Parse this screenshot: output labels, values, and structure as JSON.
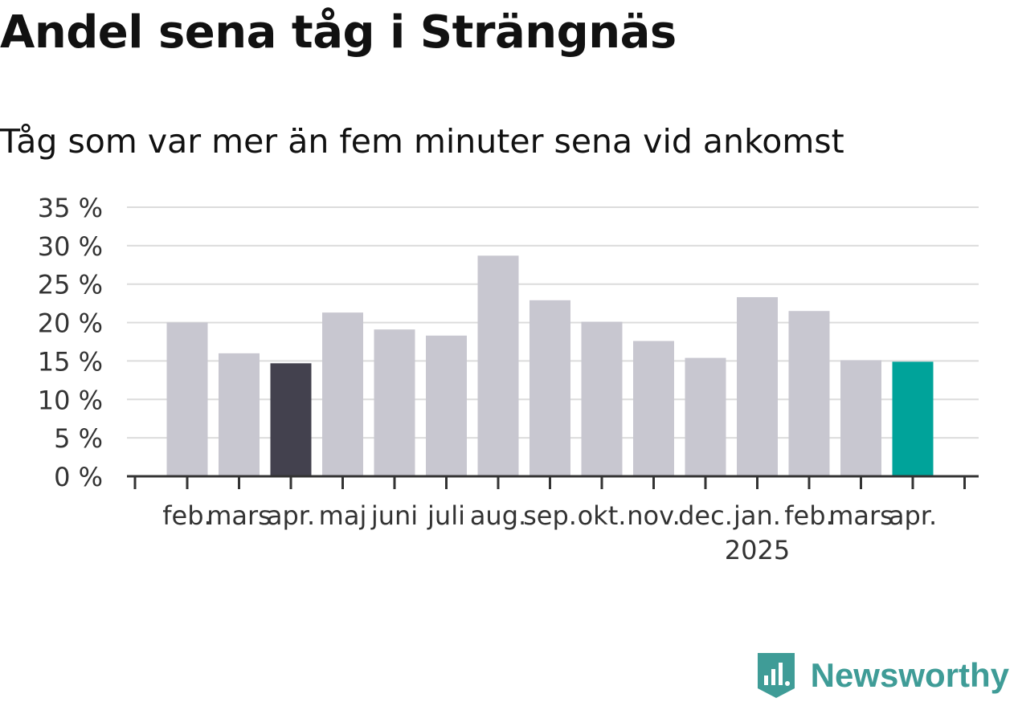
{
  "title": "Andel sena tåg i Strängnäs",
  "subtitle": "Tåg som var mer än fem minuter sena vid ankomst",
  "brand": {
    "name": "Newsworthy",
    "icon": "newsworthy-logo-icon",
    "color": "#3f9c97"
  },
  "chart_data": {
    "type": "bar",
    "categories": [
      "feb.",
      "mars",
      "apr.",
      "maj",
      "juni",
      "juli",
      "aug.",
      "sep.",
      "okt.",
      "nov.",
      "dec.",
      "jan.",
      "feb.",
      "mars",
      "apr."
    ],
    "year_label": {
      "category_index": 11,
      "text": "2025"
    },
    "values": [
      20.0,
      16.0,
      14.7,
      21.3,
      19.1,
      18.3,
      28.7,
      22.9,
      20.1,
      17.6,
      15.4,
      23.3,
      21.5,
      15.1,
      14.9
    ],
    "highlight": {
      "2": "#43414e",
      "14": "#00a39a"
    },
    "bar_color": "#c8c7d0",
    "ylim": [
      0,
      35
    ],
    "yticks": [
      0,
      5,
      10,
      15,
      20,
      25,
      30,
      35
    ],
    "ytick_labels": [
      "0 %",
      "5 %",
      "10 %",
      "15 %",
      "20 %",
      "25 %",
      "30 %",
      "35 %"
    ],
    "grid": true,
    "xlabel": "",
    "ylabel": ""
  }
}
